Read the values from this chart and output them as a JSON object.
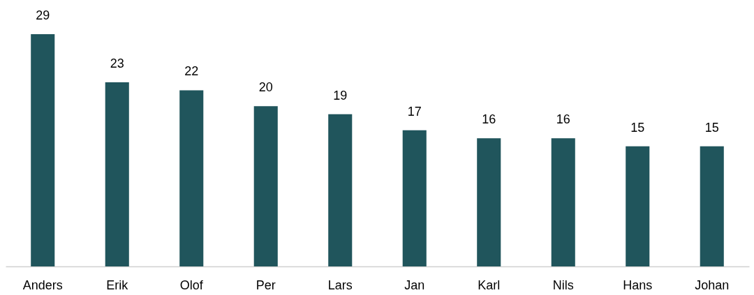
{
  "chart_data": {
    "type": "bar",
    "categories": [
      "Anders",
      "Erik",
      "Olof",
      "Per",
      "Lars",
      "Jan",
      "Karl",
      "Nils",
      "Hans",
      "Johan"
    ],
    "values": [
      29,
      23,
      22,
      20,
      19,
      17,
      16,
      16,
      15,
      15
    ],
    "color": "#20555c",
    "data_labels": true
  }
}
